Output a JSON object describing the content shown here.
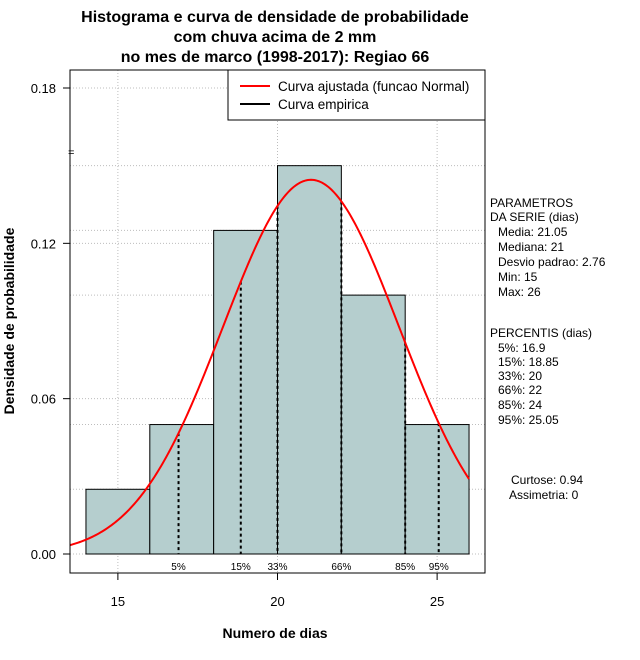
{
  "chart_data": {
    "type": "bar",
    "title_lines": [
      "Histograma e curva de densidade de probabilidade",
      "com chuva acima de 2 mm",
      "no mes de marco (1998-2017): Regiao 66"
    ],
    "xlabel": "Numero de dias",
    "ylabel": "Densidade de probabilidade",
    "xlim": [
      13.5,
      26.5
    ],
    "ylim": [
      0,
      0.18
    ],
    "x_ticks": [
      15,
      20,
      25
    ],
    "y_ticks": [
      0.0,
      0.06,
      0.12,
      0.18
    ],
    "y_tick_labels": [
      "0.00",
      "0.06",
      "0.12",
      "0.18"
    ],
    "grid": true,
    "histogram": {
      "bins": [
        {
          "from": 14,
          "to": 16,
          "density": 0.025
        },
        {
          "from": 16,
          "to": 18,
          "density": 0.05
        },
        {
          "from": 18,
          "to": 20,
          "density": 0.125
        },
        {
          "from": 20,
          "to": 22,
          "density": 0.15
        },
        {
          "from": 22,
          "to": 24,
          "density": 0.1
        },
        {
          "from": 24,
          "to": 26,
          "density": 0.05
        }
      ],
      "fill": "#b5cece"
    },
    "normal_curve": {
      "mean": 21.05,
      "sd": 2.76,
      "color": "#ff0000"
    },
    "percentiles": [
      {
        "label": "5%",
        "value": 16.9
      },
      {
        "label": "15%",
        "value": 18.85
      },
      {
        "label": "33%",
        "value": 20
      },
      {
        "label": "66%",
        "value": 22
      },
      {
        "label": "85%",
        "value": 24
      },
      {
        "label": "95%",
        "value": 25.05
      }
    ],
    "legend": {
      "position": "top-right",
      "items": [
        {
          "label": "Curva ajustada (funcao Normal)",
          "color": "#ff0000"
        },
        {
          "label": "Curva empirica",
          "color": "#000000"
        }
      ]
    },
    "side_text": {
      "params_header": [
        "PARAMETROS",
        "DA SERIE (dias)"
      ],
      "params": [
        "Media: 21.05",
        "Mediana: 21",
        "Desvio padrao: 2.76",
        "Min: 15",
        "Max: 26"
      ],
      "percentis_header": "PERCENTIS (dias)",
      "percentis": [
        "5%: 16.9",
        "15%: 18.85",
        "33%: 20",
        "66%: 22",
        "85%: 24",
        "95%: 25.05"
      ],
      "curtose": "Curtose: 0.94",
      "assimetria": "Assimetria: 0"
    }
  }
}
